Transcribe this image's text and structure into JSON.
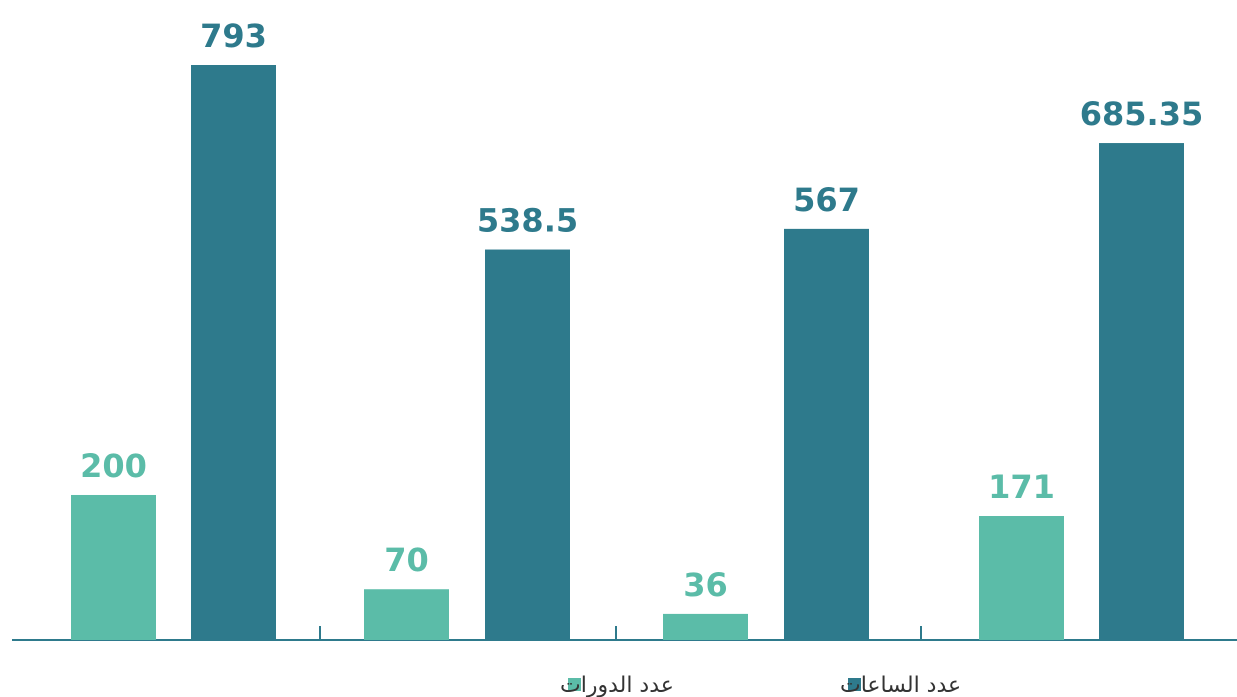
{
  "chart_data": {
    "type": "bar",
    "categories": [
      null,
      null,
      null,
      null
    ],
    "series": [
      {
        "name": "عدد الدورات",
        "color": "#5bbca8",
        "values": [
          200,
          70,
          36,
          171
        ]
      },
      {
        "name": "عدد الساعات",
        "color": "#2e7a8c",
        "values": [
          793,
          538.5,
          567,
          685.35
        ]
      }
    ]
  }
}
